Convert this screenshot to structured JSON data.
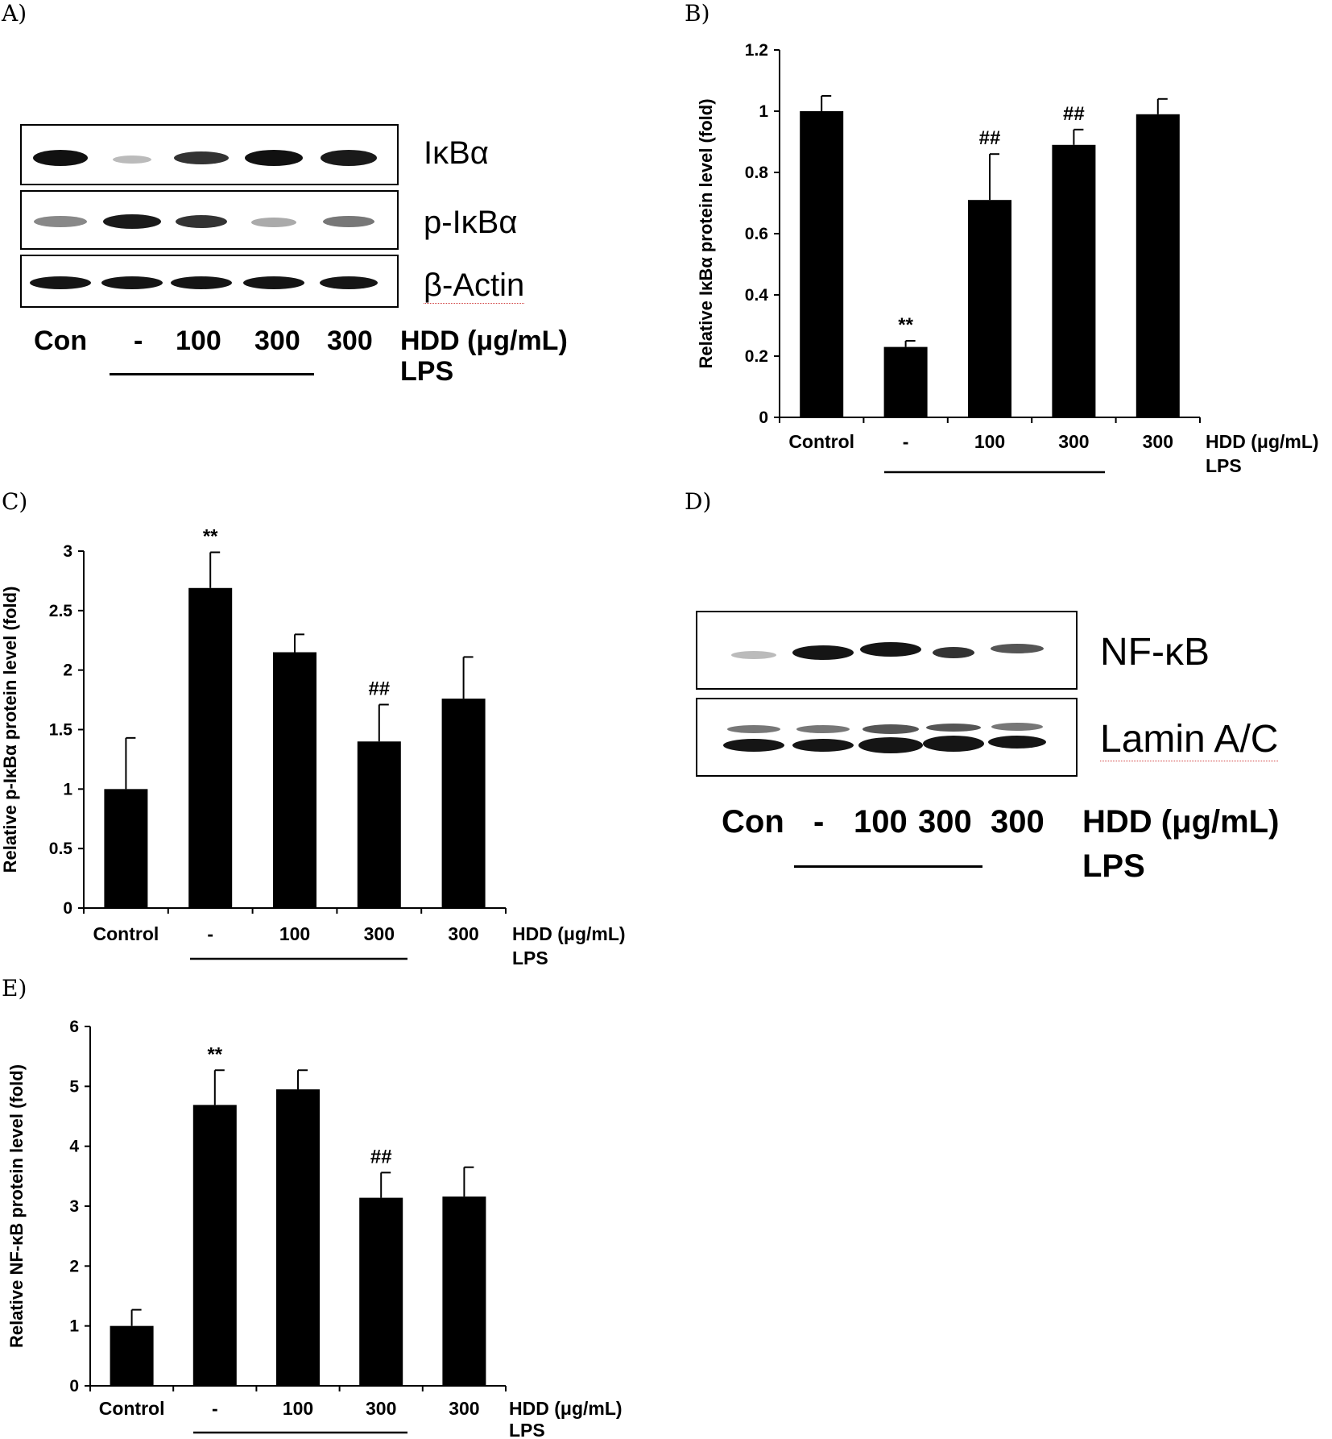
{
  "panels": {
    "A": {
      "label": "A)",
      "proteins": [
        "IκBα",
        "p-IκBα",
        "β-Actin"
      ],
      "lanes": [
        "Con",
        "-",
        "100",
        "300",
        "300"
      ],
      "treatment": "HDD (μg/mL)",
      "stimulus": "LPS"
    },
    "B": {
      "label": "B)"
    },
    "C": {
      "label": "C)"
    },
    "D": {
      "label": "D)",
      "proteins": [
        "NF-κB",
        "Lamin A/C"
      ],
      "lanes": [
        "Con",
        "-",
        "100",
        "300",
        "300"
      ],
      "treatment": "HDD (μg/mL)",
      "stimulus": "LPS"
    },
    "E": {
      "label": "E)"
    }
  },
  "chart_data": [
    {
      "panel": "B",
      "type": "bar",
      "ylabel": "Relative IκBα protein level (fold)",
      "categories": [
        "Control",
        "-",
        "100",
        "300",
        "300"
      ],
      "values": [
        1.0,
        0.23,
        0.71,
        0.89,
        0.99
      ],
      "errors": [
        0.05,
        0.02,
        0.15,
        0.05,
        0.05
      ],
      "annotations": [
        "",
        "**",
        "##",
        "##",
        ""
      ],
      "ylim": [
        0,
        1.2
      ],
      "yticks": [
        "0",
        "0.2",
        "0.4",
        "0.6",
        "0.8",
        "1",
        "1.2"
      ],
      "treatment_label": "HDD (μg/mL)",
      "stimulus_label": "LPS",
      "bar_color": "#000000"
    },
    {
      "panel": "C",
      "type": "bar",
      "ylabel": "Relative p-IκBα protein level (fold)",
      "categories": [
        "Control",
        "-",
        "100",
        "300",
        "300"
      ],
      "values": [
        1.0,
        2.69,
        2.15,
        1.4,
        1.76
      ],
      "errors": [
        0.43,
        0.3,
        0.15,
        0.31,
        0.35
      ],
      "annotations": [
        "",
        "**",
        "",
        "##",
        ""
      ],
      "ylim": [
        0,
        3
      ],
      "yticks": [
        "0",
        "0.5",
        "1",
        "1.5",
        "2",
        "2.5",
        "3"
      ],
      "treatment_label": "HDD (μg/mL)",
      "stimulus_label": "LPS",
      "bar_color": "#000000"
    },
    {
      "panel": "E",
      "type": "bar",
      "ylabel": "Relative NF-κB protein level (fold)",
      "categories": [
        "Control",
        "-",
        "100",
        "300",
        "300"
      ],
      "values": [
        1.0,
        4.69,
        4.95,
        3.14,
        3.16
      ],
      "errors": [
        0.27,
        0.58,
        0.32,
        0.42,
        0.49
      ],
      "annotations": [
        "",
        "**",
        "",
        "##",
        ""
      ],
      "ylim": [
        0,
        6
      ],
      "yticks": [
        "0",
        "1",
        "2",
        "3",
        "4",
        "5",
        "6"
      ],
      "treatment_label": "HDD (μg/mL)",
      "stimulus_label": "LPS",
      "bar_color": "#000000"
    }
  ]
}
